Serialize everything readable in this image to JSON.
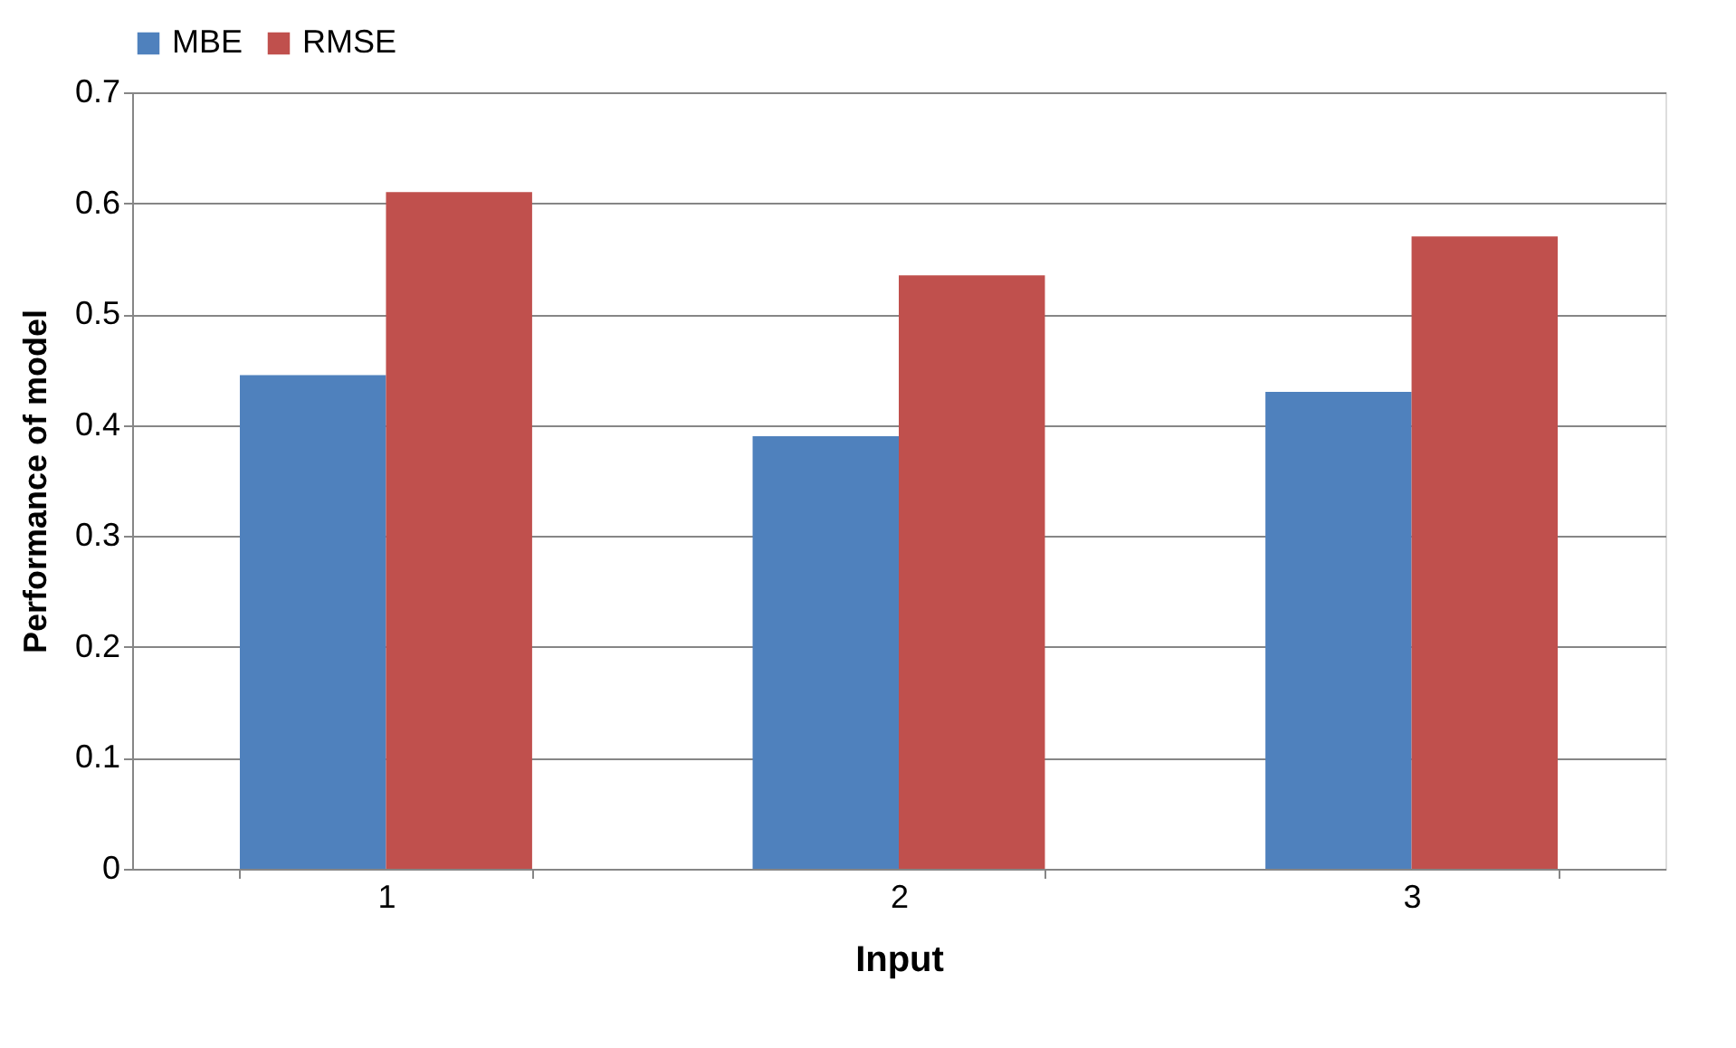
{
  "chart_data": {
    "type": "bar",
    "xlabel": "Input",
    "ylabel": "Performance of model",
    "categories": [
      "1",
      "2",
      "3"
    ],
    "series": [
      {
        "name": "MBE",
        "color": "#4f81bd",
        "values": [
          0.445,
          0.39,
          0.43
        ]
      },
      {
        "name": "RMSE",
        "color": "#c0504d",
        "values": [
          0.61,
          0.535,
          0.57
        ]
      }
    ],
    "ylim": [
      0,
      0.7
    ],
    "yticks": [
      0,
      0.1,
      0.2,
      0.3,
      0.4,
      0.5,
      0.6,
      0.7
    ],
    "grid": "y",
    "legend": "top"
  }
}
